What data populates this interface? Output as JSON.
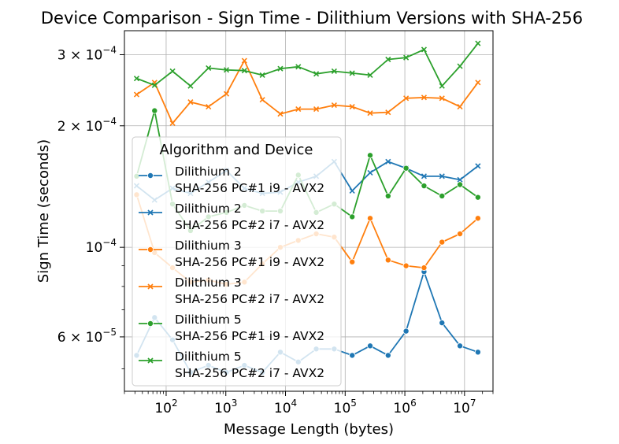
{
  "chart_data": {
    "type": "line",
    "title": "Device Comparison - Sign Time - Dilithium Versions with SHA-256",
    "xlabel": "Message Length (bytes)",
    "ylabel": "Sign Time (seconds)",
    "x_scale": "log",
    "y_scale": "log",
    "xlim": [
      20,
      30000000
    ],
    "ylim": [
      4.4e-05,
      0.000344
    ],
    "grid": true,
    "x_ticks": [
      {
        "value": 100,
        "base": "10",
        "exp": "2"
      },
      {
        "value": 1000,
        "base": "10",
        "exp": "3"
      },
      {
        "value": 10000,
        "base": "10",
        "exp": "4"
      },
      {
        "value": 100000,
        "base": "10",
        "exp": "5"
      },
      {
        "value": 1000000,
        "base": "10",
        "exp": "6"
      },
      {
        "value": 10000000,
        "base": "10",
        "exp": "7"
      }
    ],
    "y_ticks": [
      {
        "value": 6e-05,
        "mant": "6",
        "base": "× 10",
        "exp": "−5"
      },
      {
        "value": 0.0001,
        "mant": "",
        "base": "10",
        "exp": "−4"
      },
      {
        "value": 0.0002,
        "mant": "2",
        "base": "× 10",
        "exp": "−4"
      },
      {
        "value": 0.0003,
        "mant": "3",
        "base": "× 10",
        "exp": "−4"
      }
    ],
    "legend": {
      "title": "Algorithm and Device",
      "placement": "center-left"
    },
    "x": [
      32,
      64,
      128,
      256,
      512,
      1024,
      2048,
      4096,
      8192,
      16384,
      32768,
      65536,
      131072,
      262144,
      524288,
      1048576,
      2097152,
      4194304,
      8388608,
      16777216
    ],
    "series": [
      {
        "name_line1": "Dilithium 2",
        "name_line2": "SHA-256 PC#1 i9 - AVX2",
        "color": "#1f77b4",
        "marker": "circle",
        "values": [
          5.4e-05,
          6.7e-05,
          5.9e-05,
          4.9e-05,
          5.1e-05,
          4.9e-05,
          5.1e-05,
          4.9e-05,
          5.5e-05,
          5.2e-05,
          5.6e-05,
          5.6e-05,
          5.4e-05,
          5.7e-05,
          5.4e-05,
          6.2e-05,
          8.7e-05,
          6.5e-05,
          5.7e-05,
          5.5e-05
        ]
      },
      {
        "name_line1": "Dilithium 2",
        "name_line2": "SHA-256 PC#2 i7 - AVX2",
        "color": "#1f77b4",
        "marker": "x",
        "values": [
          0.000142,
          0.000131,
          0.00014,
          0.000136,
          0.000145,
          0.000155,
          0.00014,
          0.000136,
          0.000137,
          0.000145,
          0.00015,
          0.000163,
          0.000138,
          0.000153,
          0.000163,
          0.000157,
          0.00015,
          0.00015,
          0.000147,
          0.000159
        ]
      },
      {
        "name_line1": "Dilithium 3",
        "name_line2": "SHA-256 PC#1 i9 - AVX2",
        "color": "#ff7f0e",
        "marker": "circle",
        "values": [
          0.000135,
          9.7e-05,
          8.9e-05,
          8.2e-05,
          8.3e-05,
          8.1e-05,
          8.2e-05,
          9.1e-05,
          0.0001,
          0.000104,
          0.000108,
          0.000106,
          9.2e-05,
          0.000118,
          9.3e-05,
          9e-05,
          8.9e-05,
          0.000103,
          0.000108,
          0.000118
        ]
      },
      {
        "name_line1": "Dilithium 3",
        "name_line2": "SHA-256 PC#2 i7 - AVX2",
        "color": "#ff7f0e",
        "marker": "x",
        "values": [
          0.000239,
          0.000256,
          0.000203,
          0.000229,
          0.000223,
          0.00024,
          0.00029,
          0.000232,
          0.000214,
          0.00022,
          0.00022,
          0.000225,
          0.000223,
          0.000215,
          0.000216,
          0.000234,
          0.000235,
          0.000234,
          0.000223,
          0.000256
        ]
      },
      {
        "name_line1": "Dilithium 5",
        "name_line2": "SHA-256 PC#1 i9 - AVX2",
        "color": "#2ca02c",
        "marker": "circle",
        "values": [
          0.00015,
          0.000218,
          0.000128,
          0.00011,
          0.000119,
          0.000122,
          0.000127,
          0.000123,
          0.000123,
          0.000151,
          0.000122,
          0.000128,
          0.000119,
          0.000169,
          0.000134,
          0.000157,
          0.000142,
          0.000134,
          0.000143,
          0.000133
        ]
      },
      {
        "name_line1": "Dilithium 5",
        "name_line2": "SHA-256 PC#2 i7 - AVX2",
        "color": "#2ca02c",
        "marker": "x",
        "values": [
          0.000262,
          0.000252,
          0.000273,
          0.000251,
          0.000278,
          0.000275,
          0.000274,
          0.000267,
          0.000277,
          0.00028,
          0.000269,
          0.000273,
          0.00027,
          0.000267,
          0.000292,
          0.000295,
          0.000309,
          0.000251,
          0.000281,
          0.00032
        ]
      }
    ]
  }
}
